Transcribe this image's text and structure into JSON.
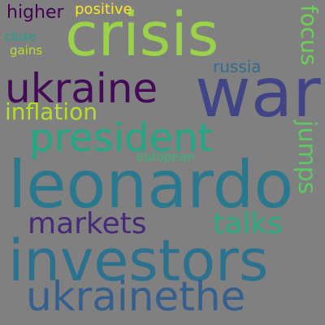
{
  "background": "#808080",
  "words": [
    {
      "text": "crisis",
      "color": "#9ad24a"
    },
    {
      "text": "war",
      "color": "#414487"
    },
    {
      "text": "ukraine",
      "color": "#440a58"
    },
    {
      "text": "president",
      "color": "#22a884"
    },
    {
      "text": "leonardo",
      "color": "#2a788e"
    },
    {
      "text": "investors",
      "color": "#2c728e"
    },
    {
      "text": "ukrainethe",
      "color": "#355f8d"
    },
    {
      "text": "markets",
      "color": "#482878"
    },
    {
      "text": "talks",
      "color": "#29af7f"
    },
    {
      "text": "inflation",
      "color": "#b5de2b"
    },
    {
      "text": "jumps",
      "color": "#5ec962"
    },
    {
      "text": "focus",
      "color": "#6ece58"
    },
    {
      "text": "russia",
      "color": "#2f6c8e"
    },
    {
      "text": "higher",
      "color": "#440154"
    },
    {
      "text": "positive",
      "color": "#fde725"
    },
    {
      "text": "close",
      "color": "#1fa187"
    },
    {
      "text": "gains",
      "color": "#b8de29"
    },
    {
      "text": "european",
      "color": "#35b779"
    }
  ]
}
